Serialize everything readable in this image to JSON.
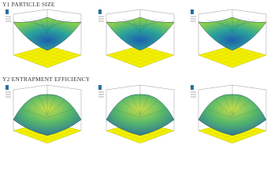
{
  "sections": [
    {
      "title": "Y1 PARTICLE SIZE"
    },
    {
      "title": "Y2 ENTRAPMENT EFFICIENCY"
    }
  ]
}
